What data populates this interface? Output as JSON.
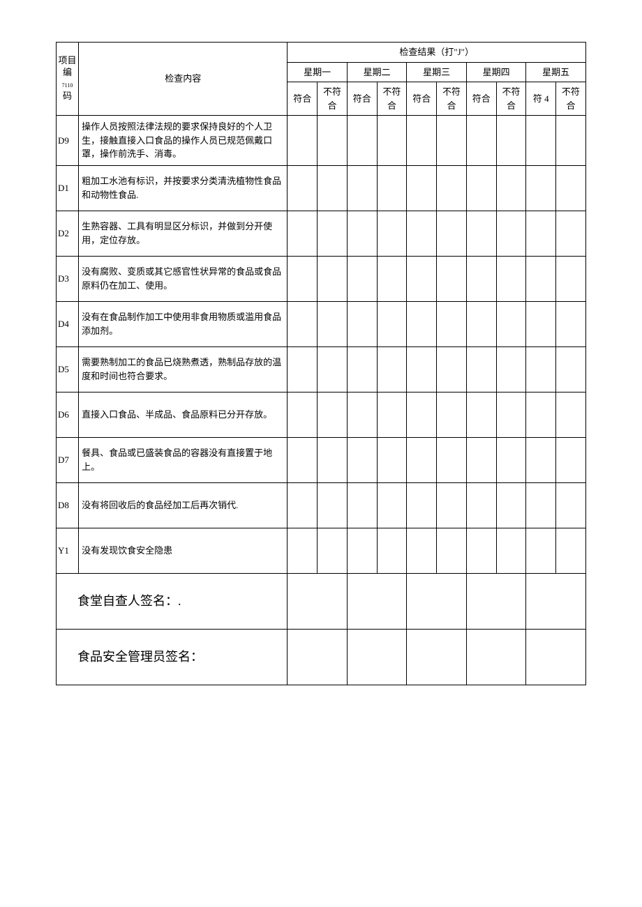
{
  "header": {
    "col_code_label": "项目编",
    "col_code_sub": "7110",
    "col_code_end": "码",
    "col_content": "检查内容",
    "results_title": "检查结果（打\"J\"）",
    "days": [
      "星期一",
      "星期二",
      "星期三",
      "星期四",
      "星期五"
    ],
    "pass": "符合",
    "fail": "不符合",
    "pass_alt": "符 4"
  },
  "rows": [
    {
      "code": "D9",
      "content": "操作人员按照法律法规的要求保持良好的个人卫生，接触直接入口食品的操作人员已规范佩戴口罩，操作前洗手、消毒。"
    },
    {
      "code": "D1",
      "content": "粗加工水池有标识，并按要求分类清洗植物性食品和动物性食品."
    },
    {
      "code": "D2",
      "content": "生熟容器、工具有明显区分标识，并做到分开使用，定位存放。"
    },
    {
      "code": "D3",
      "content": "没有腐败、变质或其它感官性状异常的食品或食品原料仍在加工、使用。"
    },
    {
      "code": "D4",
      "content": "没有在食品制作加工中使用非食用物质或滥用食品添加剂。"
    },
    {
      "code": "D5",
      "content": "需要熟制加工的食品已烧熟煮透，熟制品存放的温度和时间也符合要求。"
    },
    {
      "code": "D6",
      "content": "直接入口食品、半成品、食品原料已分开存放。"
    },
    {
      "code": "D7",
      "content": "餐具、食品或已盛装食品的容器没有直接置于地上。"
    },
    {
      "code": "D8",
      "content": "没有将回收后的食品经加工后再次销代."
    },
    {
      "code": "Y1",
      "content": "没有发现饮食安全隐患"
    }
  ],
  "signatures": {
    "self_check": "食堂自查人签名：.",
    "manager": "食品安全管理员签名："
  },
  "style": {
    "border_color": "#000000",
    "background_color": "#ffffff",
    "text_color": "#000000",
    "body_fontsize": 13,
    "sign_fontsize": 18
  }
}
